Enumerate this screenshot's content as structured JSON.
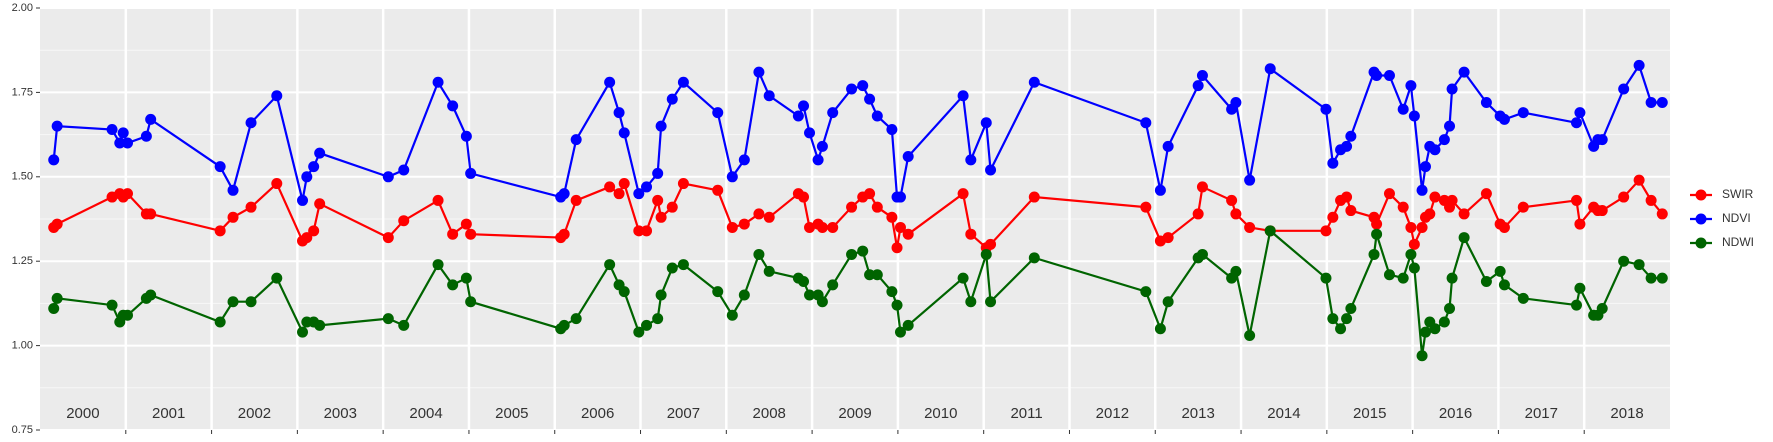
{
  "chart_data": {
    "type": "line",
    "x": [
      2000.16,
      2000.2,
      2000.84,
      2000.93,
      2000.97,
      2001.02,
      2001.24,
      2001.29,
      2002.1,
      2002.25,
      2002.46,
      2002.76,
      2003.06,
      2003.11,
      2003.19,
      2003.26,
      2004.06,
      2004.24,
      2004.64,
      2004.81,
      2004.97,
      2005.02,
      2006.07,
      2006.11,
      2006.25,
      2006.64,
      2006.75,
      2006.81,
      2006.98,
      2007.07,
      2007.2,
      2007.24,
      2007.37,
      2007.5,
      2007.9,
      2008.07,
      2008.21,
      2008.38,
      2008.5,
      2008.84,
      2008.9,
      2008.97,
      2009.07,
      2009.12,
      2009.24,
      2009.46,
      2009.59,
      2009.67,
      2009.76,
      2009.93,
      2009.99,
      2010.03,
      2010.12,
      2010.76,
      2010.85,
      2011.03,
      2011.08,
      2011.59,
      2012.89,
      2013.06,
      2013.15,
      2013.5,
      2013.55,
      2013.89,
      2013.94,
      2014.1,
      2014.34,
      2014.99,
      2015.07,
      2015.16,
      2015.23,
      2015.28,
      2015.55,
      2015.58,
      2015.73,
      2015.89,
      2015.98,
      2016.02,
      2016.11,
      2016.15,
      2016.2,
      2016.26,
      2016.37,
      2016.43,
      2016.46,
      2016.6,
      2016.86,
      2017.02,
      2017.07,
      2017.29,
      2017.91,
      2017.95,
      2018.11,
      2018.16,
      2018.21,
      2018.46,
      2018.64,
      2018.78,
      2018.91
    ],
    "series": [
      {
        "name": "SWIR",
        "color": "#ff0000",
        "values": [
          1.35,
          1.36,
          1.44,
          1.45,
          1.44,
          1.45,
          1.39,
          1.39,
          1.34,
          1.38,
          1.41,
          1.48,
          1.31,
          1.32,
          1.34,
          1.42,
          1.32,
          1.37,
          1.43,
          1.33,
          1.36,
          1.33,
          1.32,
          1.33,
          1.43,
          1.47,
          1.45,
          1.48,
          1.34,
          1.34,
          1.43,
          1.38,
          1.41,
          1.48,
          1.46,
          1.35,
          1.36,
          1.39,
          1.38,
          1.45,
          1.44,
          1.35,
          1.36,
          1.35,
          1.35,
          1.41,
          1.44,
          1.45,
          1.41,
          1.38,
          1.29,
          1.35,
          1.33,
          1.45,
          1.33,
          1.29,
          1.3,
          1.44,
          1.41,
          1.31,
          1.32,
          1.39,
          1.47,
          1.43,
          1.39,
          1.35,
          1.34,
          1.34,
          1.38,
          1.43,
          1.44,
          1.4,
          1.38,
          1.36,
          1.45,
          1.41,
          1.35,
          1.3,
          1.35,
          1.38,
          1.39,
          1.44,
          1.43,
          1.41,
          1.43,
          1.39,
          1.45,
          1.36,
          1.35,
          1.41,
          1.43,
          1.36,
          1.41,
          1.4,
          1.4,
          1.44,
          1.49,
          1.43,
          1.39
        ]
      },
      {
        "name": "NDVI",
        "color": "#0000ff",
        "values": [
          1.55,
          1.65,
          1.64,
          1.6,
          1.63,
          1.6,
          1.62,
          1.67,
          1.53,
          1.46,
          1.66,
          1.74,
          1.43,
          1.5,
          1.53,
          1.57,
          1.5,
          1.52,
          1.78,
          1.71,
          1.62,
          1.51,
          1.44,
          1.45,
          1.61,
          1.78,
          1.69,
          1.63,
          1.45,
          1.47,
          1.51,
          1.65,
          1.73,
          1.78,
          1.69,
          1.5,
          1.55,
          1.81,
          1.74,
          1.68,
          1.71,
          1.63,
          1.55,
          1.59,
          1.69,
          1.76,
          1.77,
          1.73,
          1.68,
          1.64,
          1.44,
          1.44,
          1.56,
          1.74,
          1.55,
          1.66,
          1.52,
          1.78,
          1.66,
          1.46,
          1.59,
          1.77,
          1.8,
          1.7,
          1.72,
          1.49,
          1.82,
          1.7,
          1.54,
          1.58,
          1.59,
          1.62,
          1.81,
          1.8,
          1.8,
          1.7,
          1.77,
          1.68,
          1.46,
          1.53,
          1.59,
          1.58,
          1.61,
          1.65,
          1.76,
          1.81,
          1.72,
          1.68,
          1.67,
          1.69,
          1.66,
          1.69,
          1.59,
          1.61,
          1.61,
          1.76,
          1.83,
          1.72,
          1.72
        ]
      },
      {
        "name": "NDWI",
        "color": "#006400",
        "values": [
          1.11,
          1.14,
          1.12,
          1.07,
          1.09,
          1.09,
          1.14,
          1.15,
          1.07,
          1.13,
          1.13,
          1.2,
          1.04,
          1.07,
          1.07,
          1.06,
          1.08,
          1.06,
          1.24,
          1.18,
          1.2,
          1.13,
          1.05,
          1.06,
          1.08,
          1.24,
          1.18,
          1.16,
          1.04,
          1.06,
          1.08,
          1.15,
          1.23,
          1.24,
          1.16,
          1.09,
          1.15,
          1.27,
          1.22,
          1.2,
          1.19,
          1.15,
          1.15,
          1.13,
          1.18,
          1.27,
          1.28,
          1.21,
          1.21,
          1.16,
          1.12,
          1.04,
          1.06,
          1.2,
          1.13,
          1.27,
          1.13,
          1.26,
          1.16,
          1.05,
          1.13,
          1.26,
          1.27,
          1.2,
          1.22,
          1.03,
          1.34,
          1.2,
          1.08,
          1.05,
          1.08,
          1.11,
          1.27,
          1.33,
          1.21,
          1.2,
          1.27,
          1.23,
          0.97,
          1.04,
          1.07,
          1.05,
          1.07,
          1.11,
          1.2,
          1.32,
          1.19,
          1.22,
          1.18,
          1.14,
          1.12,
          1.17,
          1.09,
          1.09,
          1.11,
          1.25,
          1.24,
          1.2,
          1.2
        ]
      }
    ],
    "xlim": [
      2000,
      2019
    ],
    "xticks": [
      {
        "value": 2000.5,
        "label": "2000"
      },
      {
        "value": 2001.5,
        "label": "2001"
      },
      {
        "value": 2002.5,
        "label": "2002"
      },
      {
        "value": 2003.5,
        "label": "2003"
      },
      {
        "value": 2004.5,
        "label": "2004"
      },
      {
        "value": 2005.5,
        "label": "2005"
      },
      {
        "value": 2006.5,
        "label": "2006"
      },
      {
        "value": 2007.5,
        "label": "2007"
      },
      {
        "value": 2008.5,
        "label": "2008"
      },
      {
        "value": 2009.5,
        "label": "2009"
      },
      {
        "value": 2010.5,
        "label": "2010"
      },
      {
        "value": 2011.5,
        "label": "2011"
      },
      {
        "value": 2012.5,
        "label": "2012"
      },
      {
        "value": 2013.5,
        "label": "2013"
      },
      {
        "value": 2014.5,
        "label": "2014"
      },
      {
        "value": 2015.5,
        "label": "2015"
      },
      {
        "value": 2016.5,
        "label": "2016"
      },
      {
        "value": 2017.5,
        "label": "2017"
      },
      {
        "value": 2018.5,
        "label": "2018"
      }
    ],
    "ylim": [
      0.75,
      2.0
    ],
    "yticks": [
      {
        "value": 0.75,
        "label": "0.75"
      },
      {
        "value": 1.0,
        "label": "1.00"
      },
      {
        "value": 1.25,
        "label": "1.25"
      },
      {
        "value": 1.5,
        "label": "1.50"
      },
      {
        "value": 1.75,
        "label": "1.75"
      },
      {
        "value": 2.0,
        "label": "2.00"
      }
    ],
    "grid": true,
    "legend": "right"
  }
}
